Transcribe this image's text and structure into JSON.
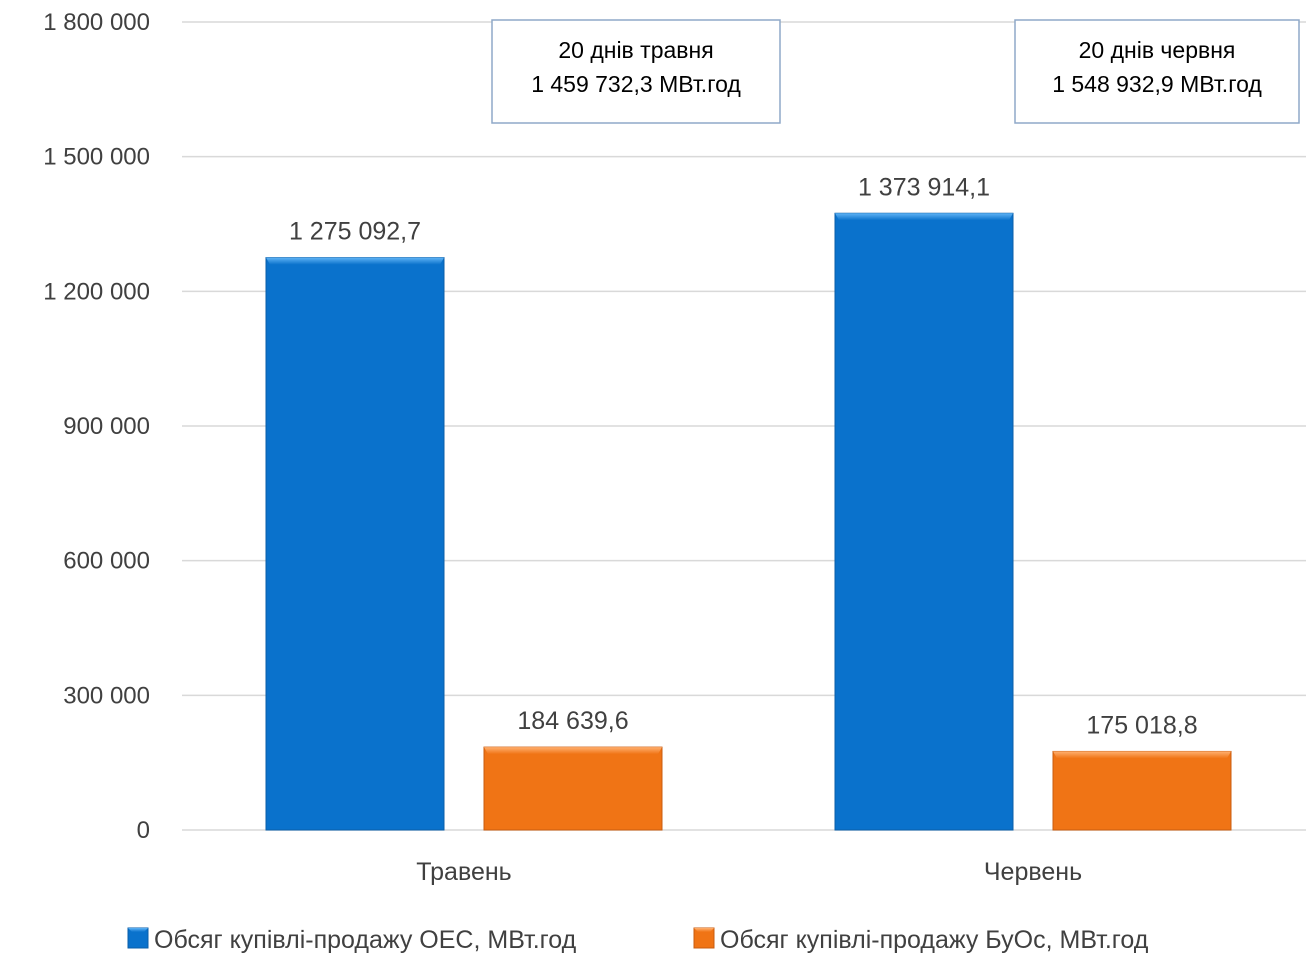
{
  "chart_data": {
    "type": "bar",
    "title": "",
    "xlabel": "",
    "ylabel": "",
    "ylim": [
      0,
      1800000
    ],
    "yticks": [
      0,
      300000,
      600000,
      900000,
      1200000,
      1500000,
      1800000
    ],
    "ytick_labels": [
      "0",
      "300 000",
      "600 000",
      "900 000",
      "1 200 000",
      "1 500 000",
      "1 800 000"
    ],
    "grid": true,
    "legend_position": "bottom",
    "categories": [
      "Травень",
      "Червень"
    ],
    "series": [
      {
        "name": "Обсяг купівлі-продажу ОЕС, МВт.год",
        "color": "#0A72CC",
        "values": [
          1275092.7,
          1373914.1
        ],
        "labels": [
          "1 275 092,7",
          "1 373 914,1"
        ]
      },
      {
        "name": "Обсяг купівлі-продажу БуОс, МВт.год",
        "color": "#F07415",
        "values": [
          184639.6,
          175018.8
        ],
        "labels": [
          "184 639,6",
          "175 018,8"
        ]
      }
    ],
    "annotations": [
      {
        "category": "Травень",
        "line1": "20 днів травня",
        "line2": "1 459 732,3 МВт.год"
      },
      {
        "category": "Червень",
        "line1": "20 днів червня",
        "line2": "1 548 932,9 МВт.год"
      }
    ]
  }
}
